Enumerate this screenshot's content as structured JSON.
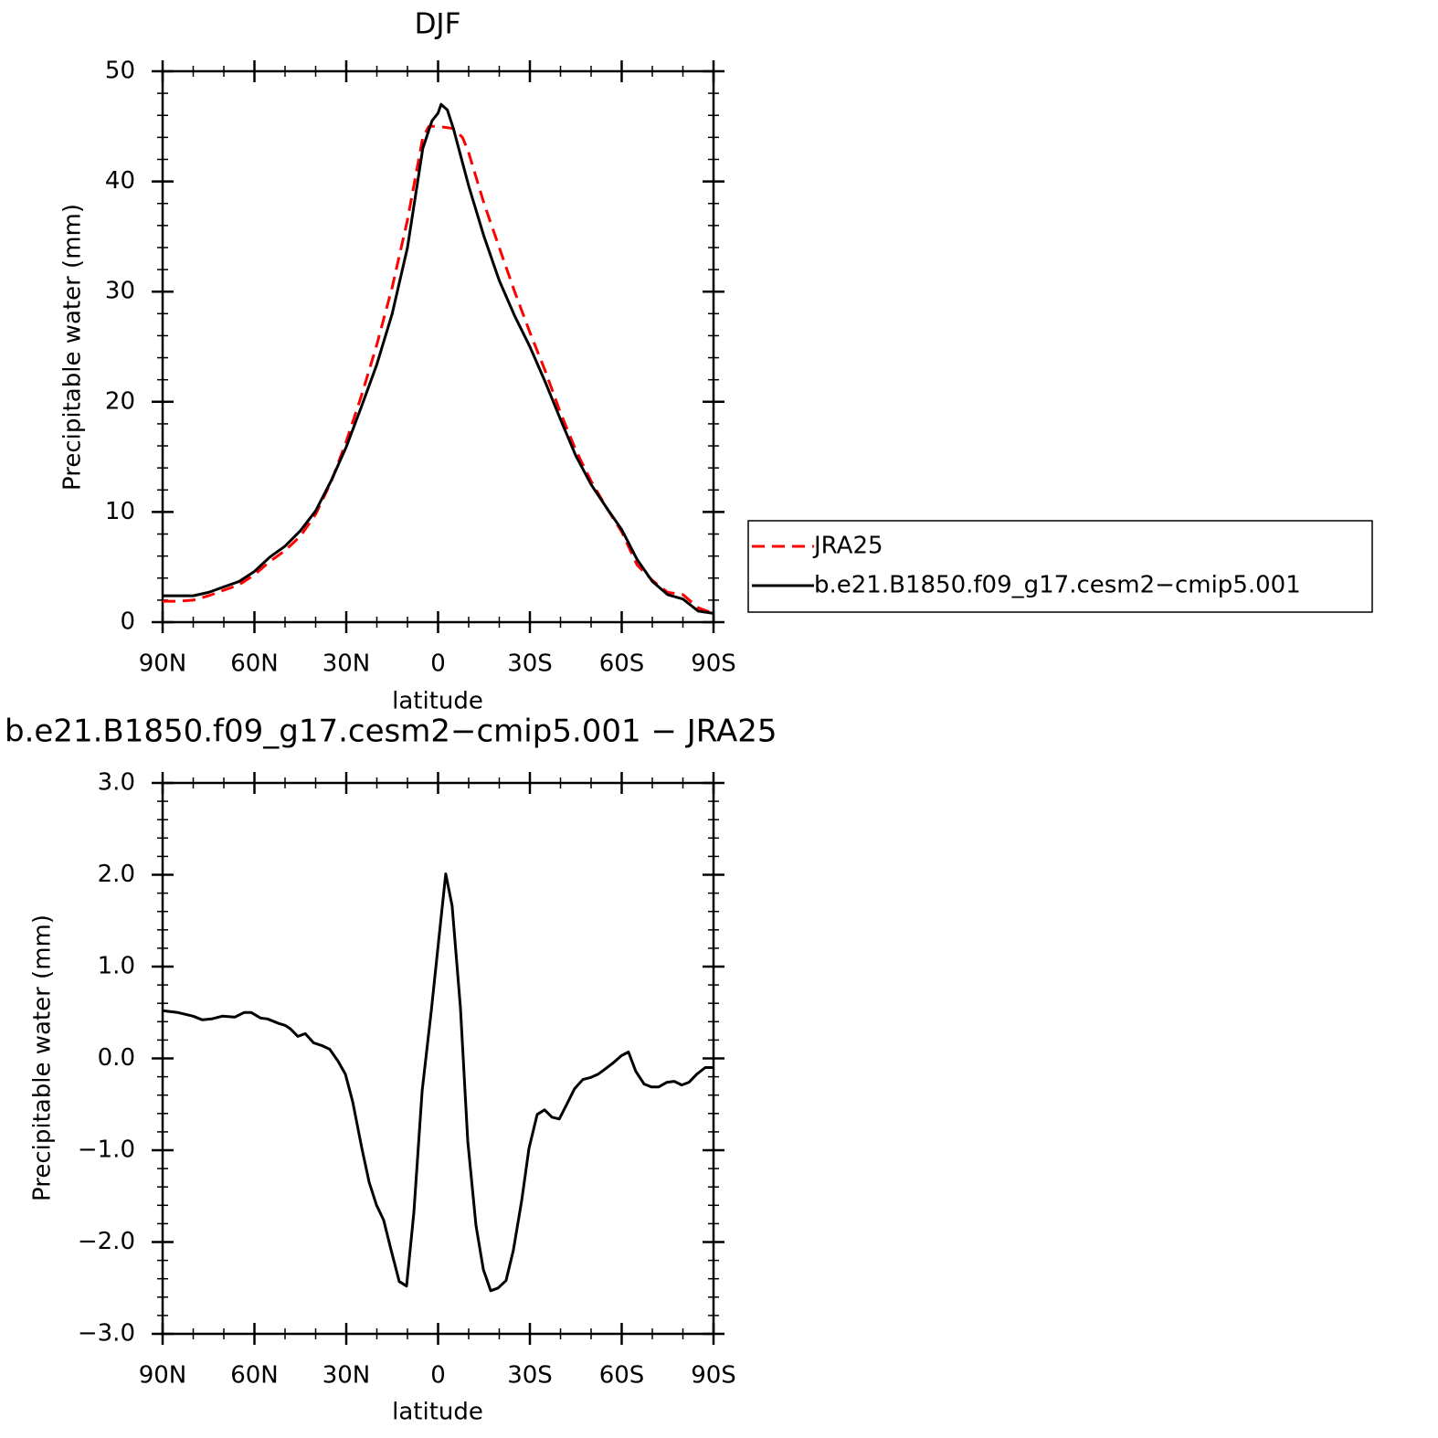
{
  "chart_data": [
    {
      "type": "line",
      "title": "DJF",
      "xlabel": "latitude",
      "ylabel": "Precipitable water (mm)",
      "xlim": [
        90,
        -90
      ],
      "xticks": [
        {
          "value": 90,
          "label": "90N"
        },
        {
          "value": 60,
          "label": "60N"
        },
        {
          "value": 30,
          "label": "30N"
        },
        0,
        {
          "value": -30,
          "label": "30S"
        },
        {
          "value": -60,
          "label": "60S"
        },
        {
          "value": -90,
          "label": "90S"
        }
      ],
      "ylim": [
        0,
        50
      ],
      "yticks": [
        0,
        10,
        20,
        30,
        40,
        50
      ],
      "legend": "right",
      "series": [
        {
          "name": "JRA25",
          "color": "#ff0000",
          "dash": true,
          "x": [
            90,
            85,
            80,
            75,
            70,
            65,
            60,
            55,
            50,
            45,
            40,
            35,
            30,
            25,
            20,
            15,
            10,
            5,
            3,
            0,
            -5,
            -8,
            -10,
            -15,
            -20,
            -25,
            -30,
            -35,
            -40,
            -45,
            -50,
            -55,
            -60,
            -65,
            -70,
            -75,
            -80,
            -85,
            -90
          ],
          "values": [
            1.9,
            1.9,
            2.0,
            2.4,
            2.9,
            3.4,
            4.3,
            5.5,
            6.5,
            7.8,
            9.8,
            12.7,
            16.4,
            20.6,
            25.2,
            30.4,
            36.5,
            44.0,
            45.0,
            45.0,
            44.8,
            44.0,
            42.6,
            38.0,
            34.0,
            30.0,
            26.3,
            22.8,
            19.0,
            15.6,
            12.8,
            10.4,
            8.2,
            5.2,
            3.8,
            2.7,
            2.5,
            1.3,
            0.8
          ]
        },
        {
          "name": "b.e21.B1850.f09_g17.cesm2−cmip5.001",
          "color": "#000000",
          "dash": false,
          "x": [
            90,
            85,
            80,
            75,
            70,
            65,
            60,
            55,
            50,
            45,
            40,
            35,
            30,
            25,
            20,
            15,
            10,
            5,
            2,
            0,
            -1,
            -3,
            -5,
            -10,
            -15,
            -20,
            -25,
            -30,
            -35,
            -40,
            -45,
            -50,
            -55,
            -60,
            -65,
            -70,
            -75,
            -80,
            -85,
            -90
          ],
          "values": [
            2.4,
            2.4,
            2.4,
            2.7,
            3.2,
            3.7,
            4.6,
            5.9,
            6.9,
            8.3,
            10.1,
            12.8,
            15.9,
            19.6,
            23.4,
            28.0,
            34.0,
            43.0,
            45.5,
            46.2,
            47.0,
            46.5,
            44.8,
            39.6,
            35.0,
            31.0,
            27.8,
            25.0,
            21.8,
            18.4,
            15.1,
            12.5,
            10.4,
            8.4,
            5.7,
            3.7,
            2.5,
            2.1,
            1.0,
            0.8
          ]
        }
      ]
    },
    {
      "type": "line",
      "title": "b.e21.B1850.f09_g17.cesm2−cmip5.001 − JRA25",
      "xlabel": "latitude",
      "ylabel": "Precipitable water (mm)",
      "xlim": [
        90,
        -90
      ],
      "xticks": [
        {
          "value": 90,
          "label": "90N"
        },
        {
          "value": 60,
          "label": "60N"
        },
        {
          "value": 30,
          "label": "30N"
        },
        0,
        {
          "value": -30,
          "label": "30S"
        },
        {
          "value": -60,
          "label": "60S"
        },
        {
          "value": -90,
          "label": "90S"
        }
      ],
      "ylim": [
        -3,
        3
      ],
      "yticks": [
        {
          "value": -3,
          "label": "−3.0"
        },
        {
          "value": -2,
          "label": "−2.0"
        },
        {
          "value": -1,
          "label": "−1.0"
        },
        {
          "value": 0,
          "label": "0.0"
        },
        {
          "value": 1,
          "label": "1.0"
        },
        {
          "value": 2,
          "label": "2.0"
        },
        {
          "value": 3,
          "label": "3.0"
        }
      ],
      "series": [
        {
          "color": "#000000",
          "dash": false,
          "x": [
            90,
            85,
            80,
            77,
            74,
            70.5,
            66.4,
            63.4,
            61,
            58,
            55.7,
            52,
            50,
            48.2,
            45.8,
            43.4,
            40.7,
            38,
            35.4,
            32.7,
            30.3,
            27.9,
            24.9,
            22.5,
            20.1,
            17.8,
            15.4,
            12.7,
            10.3,
            7.9,
            5.2,
            2.2,
            -0.1,
            -2.5,
            -4.6,
            -7.3,
            -9.7,
            -12.4,
            -14.8,
            -17.2,
            -19.6,
            -22.2,
            -24.6,
            -27.3,
            -29.7,
            -32.4,
            -34.8,
            -37.2,
            -39.6,
            -42.2,
            -44.6,
            -47.3,
            -49.7,
            -52.4,
            -54.8,
            -57.2,
            -59.9,
            -62.2,
            -64.6,
            -67.3,
            -69.7,
            -72.1,
            -74.8,
            -77.2,
            -79.6,
            -82,
            -84.6,
            -87.3,
            -90
          ],
          "values": [
            0.52,
            0.5,
            0.46,
            0.42,
            0.43,
            0.46,
            0.45,
            0.5,
            0.5,
            0.44,
            0.43,
            0.38,
            0.36,
            0.32,
            0.24,
            0.27,
            0.17,
            0.14,
            0.1,
            -0.03,
            -0.17,
            -0.47,
            -0.98,
            -1.35,
            -1.6,
            -1.76,
            -2.08,
            -2.43,
            -2.48,
            -1.68,
            -0.35,
            0.52,
            1.25,
            2.01,
            1.66,
            0.55,
            -0.9,
            -1.82,
            -2.3,
            -2.53,
            -2.5,
            -2.42,
            -2.09,
            -1.55,
            -0.98,
            -0.61,
            -0.56,
            -0.64,
            -0.66,
            -0.49,
            -0.33,
            -0.23,
            -0.21,
            -0.17,
            -0.11,
            -0.05,
            0.03,
            0.07,
            -0.14,
            -0.28,
            -0.31,
            -0.31,
            -0.26,
            -0.25,
            -0.29,
            -0.26,
            -0.17,
            -0.1,
            -0.1
          ]
        }
      ]
    }
  ]
}
